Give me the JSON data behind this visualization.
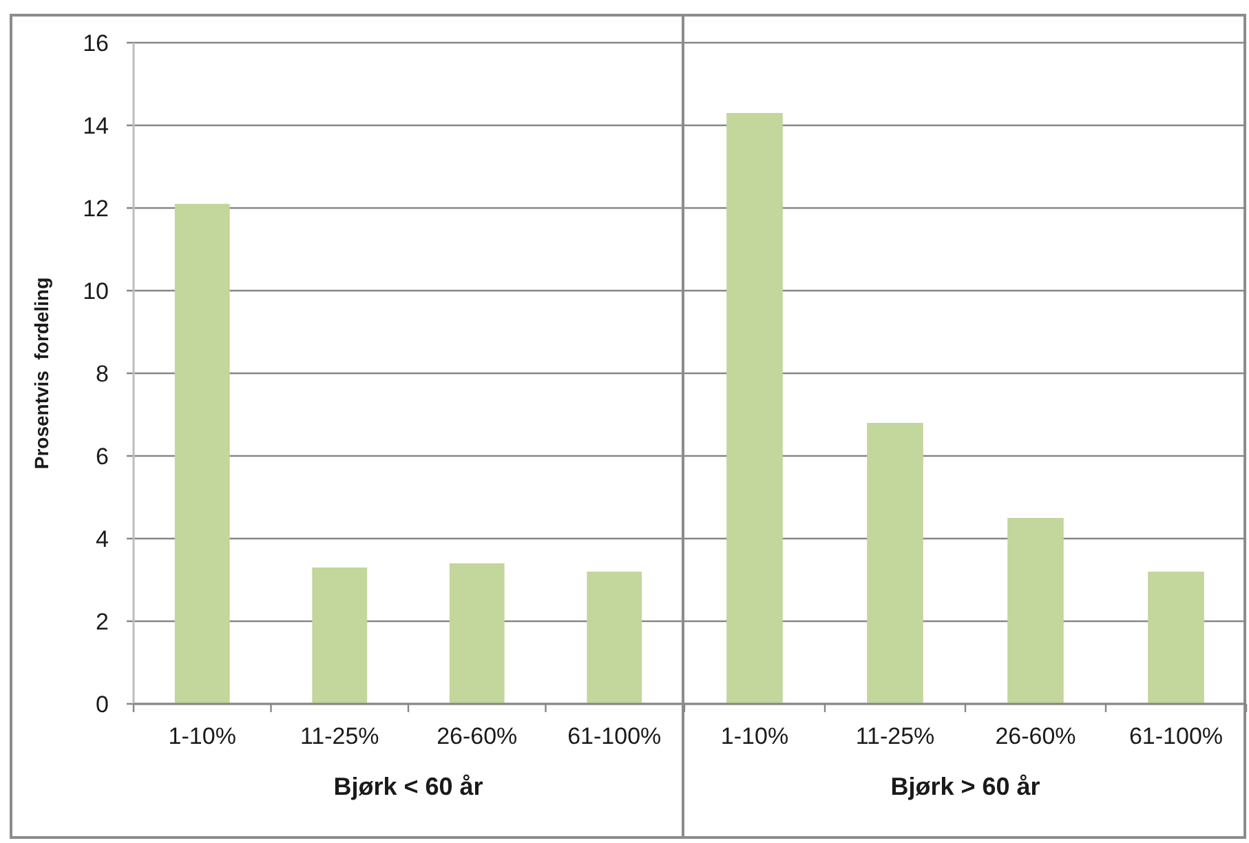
{
  "chart_data": [
    {
      "type": "bar",
      "categories": [
        "1-10%",
        "11-25%",
        "26-60%",
        "61-100%"
      ],
      "values": [
        12.1,
        3.3,
        3.4,
        3.2
      ],
      "color": "#c3d69b",
      "ylim": [
        0,
        16
      ],
      "yticks": [
        0,
        2,
        4,
        6,
        8,
        10,
        12,
        14,
        16
      ],
      "ylabel": "Prosentvis  fordeling",
      "xlabel": "Bjørk < 60 år",
      "grid": "y"
    },
    {
      "type": "bar",
      "categories": [
        "1-10%",
        "11-25%",
        "26-60%",
        "61-100%"
      ],
      "values": [
        14.3,
        6.8,
        4.5,
        3.2
      ],
      "color": "#c3d69b",
      "ylim": [
        0,
        16
      ],
      "yticks": [
        0,
        2,
        4,
        6,
        8,
        10,
        12,
        14,
        16
      ],
      "xlabel": "Bjørk > 60 år",
      "grid": "y",
      "tick_labels": "x"
    }
  ]
}
